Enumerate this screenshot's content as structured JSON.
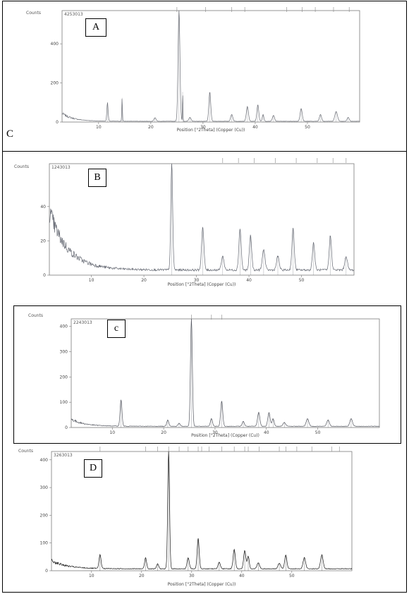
{
  "corner_label": "C",
  "chart_data": [
    {
      "type": "line",
      "panel_label": "A",
      "sample_id": "4253013",
      "ylabel": "Counts",
      "xlabel": "Position [°2Theta] (Copper (Cu))",
      "x_ticks": [
        10,
        20,
        30,
        40,
        50
      ],
      "y_ticks": [
        0,
        200,
        400
      ],
      "xlim": [
        3,
        60
      ],
      "ylim": [
        0,
        570
      ],
      "background": {
        "start": 40,
        "decay": 2.2,
        "floor": 4
      },
      "peaks": [
        [
          11.7,
          95,
          0.12
        ],
        [
          14.5,
          120,
          0.06
        ],
        [
          20.8,
          18,
          0.2
        ],
        [
          25.4,
          570,
          0.18
        ],
        [
          26.1,
          150,
          0.05
        ],
        [
          27.5,
          20,
          0.2
        ],
        [
          31.3,
          150,
          0.18
        ],
        [
          35.5,
          35,
          0.2
        ],
        [
          38.5,
          75,
          0.2
        ],
        [
          40.5,
          85,
          0.18
        ],
        [
          41.5,
          35,
          0.15
        ],
        [
          43.5,
          30,
          0.2
        ],
        [
          48.8,
          65,
          0.2
        ],
        [
          52.5,
          35,
          0.2
        ],
        [
          55.5,
          50,
          0.25
        ],
        [
          57.8,
          20,
          0.2
        ]
      ],
      "ref_ticks": [
        25,
        30.5,
        35.5,
        38,
        46,
        49,
        51.5,
        55,
        58
      ]
    },
    {
      "type": "line",
      "panel_label": "B",
      "sample_id": "1243013",
      "ylabel": "Counts",
      "xlabel": "Position [°2Theta] (Copper (Cu))",
      "x_ticks": [
        10,
        20,
        30,
        40,
        50
      ],
      "y_ticks": [
        0,
        20,
        40
      ],
      "xlim": [
        2,
        60
      ],
      "ylim": [
        0,
        65
      ],
      "background": {
        "start": 34,
        "decay": 3.5,
        "floor": 3
      },
      "peaks": [
        [
          25.3,
          62,
          0.18
        ],
        [
          31.2,
          25,
          0.22
        ],
        [
          35.0,
          8,
          0.25
        ],
        [
          38.3,
          24,
          0.22
        ],
        [
          40.3,
          20,
          0.22
        ],
        [
          42.8,
          12,
          0.25
        ],
        [
          45.5,
          8,
          0.25
        ],
        [
          48.4,
          24,
          0.22
        ],
        [
          52.3,
          16,
          0.22
        ],
        [
          55.5,
          20,
          0.22
        ],
        [
          58.5,
          8,
          0.25
        ]
      ],
      "ref_ticks": [
        35,
        38,
        41,
        45,
        49,
        53,
        56,
        58.5
      ]
    },
    {
      "type": "line",
      "panel_label": "c",
      "sample_id": "2243013",
      "ylabel": "Counts",
      "xlabel": "Position [°2Theta] (Copper (Cu))",
      "x_ticks": [
        10,
        20,
        30,
        40,
        50
      ],
      "y_ticks": [
        0,
        100,
        200,
        300,
        400
      ],
      "xlim": [
        2,
        62
      ],
      "ylim": [
        0,
        430
      ],
      "background": {
        "start": 28,
        "decay": 2.5,
        "floor": 5
      },
      "peaks": [
        [
          11.7,
          105,
          0.18
        ],
        [
          20.8,
          25,
          0.2
        ],
        [
          23.0,
          12,
          0.2
        ],
        [
          25.4,
          430,
          0.18
        ],
        [
          29.3,
          30,
          0.2
        ],
        [
          31.3,
          100,
          0.2
        ],
        [
          35.5,
          20,
          0.2
        ],
        [
          38.5,
          55,
          0.22
        ],
        [
          40.5,
          55,
          0.22
        ],
        [
          41.3,
          30,
          0.2
        ],
        [
          43.5,
          15,
          0.25
        ],
        [
          48.0,
          30,
          0.25
        ],
        [
          52.0,
          25,
          0.25
        ],
        [
          56.5,
          30,
          0.25
        ]
      ],
      "ref_ticks": [
        25.4,
        29.3,
        31.3
      ]
    },
    {
      "type": "line",
      "panel_label": "D",
      "sample_id": "3263013",
      "ylabel": "Counts",
      "xlabel": "Position [°2Theta] (Copper (Cu))",
      "x_ticks": [
        10,
        20,
        30,
        40,
        50
      ],
      "y_ticks": [
        0,
        100,
        200,
        300,
        400
      ],
      "xlim": [
        2,
        62
      ],
      "ylim": [
        0,
        430
      ],
      "background": {
        "start": 30,
        "decay": 3,
        "floor": 7
      },
      "peaks": [
        [
          11.7,
          50,
          0.2
        ],
        [
          20.8,
          40,
          0.2
        ],
        [
          23.2,
          18,
          0.2
        ],
        [
          25.4,
          430,
          0.18
        ],
        [
          29.3,
          40,
          0.22
        ],
        [
          31.3,
          110,
          0.2
        ],
        [
          35.5,
          25,
          0.22
        ],
        [
          38.5,
          70,
          0.22
        ],
        [
          40.6,
          65,
          0.22
        ],
        [
          41.3,
          45,
          0.2
        ],
        [
          43.3,
          22,
          0.25
        ],
        [
          47.5,
          20,
          0.25
        ],
        [
          48.8,
          50,
          0.22
        ],
        [
          52.5,
          40,
          0.25
        ],
        [
          56.0,
          50,
          0.25
        ]
      ],
      "ref_ticks": [
        11.7,
        20.8,
        23.2,
        25.4,
        27.5,
        29.3,
        31.3,
        32,
        33.5,
        36,
        38.5,
        40.6,
        41.3,
        43.5,
        47.5,
        48.8,
        51,
        54,
        58,
        59.5
      ]
    }
  ]
}
